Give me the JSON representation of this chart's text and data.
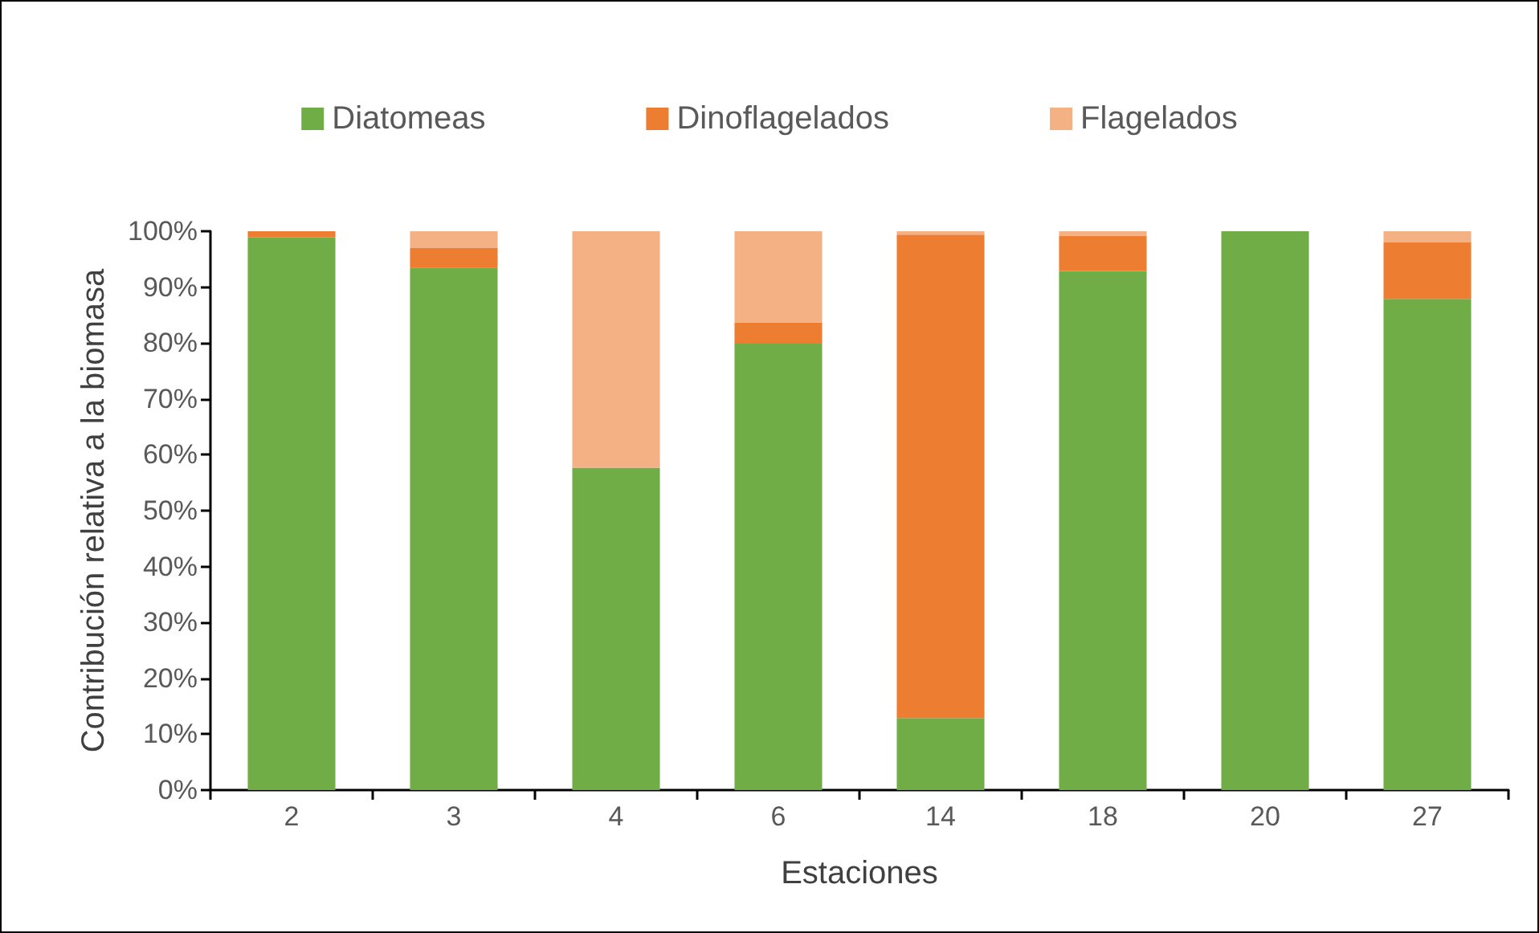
{
  "chart_data": {
    "type": "bar",
    "stacked": true,
    "xlabel": "Estaciones",
    "ylabel": "Contribución relativa a la biomasa",
    "categories": [
      "2",
      "3",
      "4",
      "6",
      "14",
      "18",
      "20",
      "27"
    ],
    "series": [
      {
        "name": "Diatomeas",
        "color": "#70ad47",
        "values": [
          98.9,
          93.5,
          57.7,
          79.9,
          12.9,
          92.9,
          100,
          87.9
        ]
      },
      {
        "name": "Dinoflagelados",
        "color": "#ed7d31",
        "values": [
          1.1,
          3.5,
          0,
          3.8,
          86.5,
          6.3,
          0,
          10.1
        ]
      },
      {
        "name": "Flagelados",
        "color": "#f4b183",
        "values": [
          0,
          3,
          42.3,
          16.3,
          0.6,
          0.8,
          0,
          2
        ]
      }
    ],
    "ylim": [
      0,
      100
    ],
    "yticks": [
      {
        "value": 0,
        "label": "0%"
      },
      {
        "value": 10,
        "label": "10%"
      },
      {
        "value": 20,
        "label": "20%"
      },
      {
        "value": 30,
        "label": "30%"
      },
      {
        "value": 40,
        "label": "40%"
      },
      {
        "value": 50,
        "label": "50%"
      },
      {
        "value": 60,
        "label": "60%"
      },
      {
        "value": 70,
        "label": "70%"
      },
      {
        "value": 80,
        "label": "80%"
      },
      {
        "value": 90,
        "label": "90%"
      },
      {
        "value": 100,
        "label": "100%"
      }
    ],
    "grid": false,
    "legend": "top"
  }
}
